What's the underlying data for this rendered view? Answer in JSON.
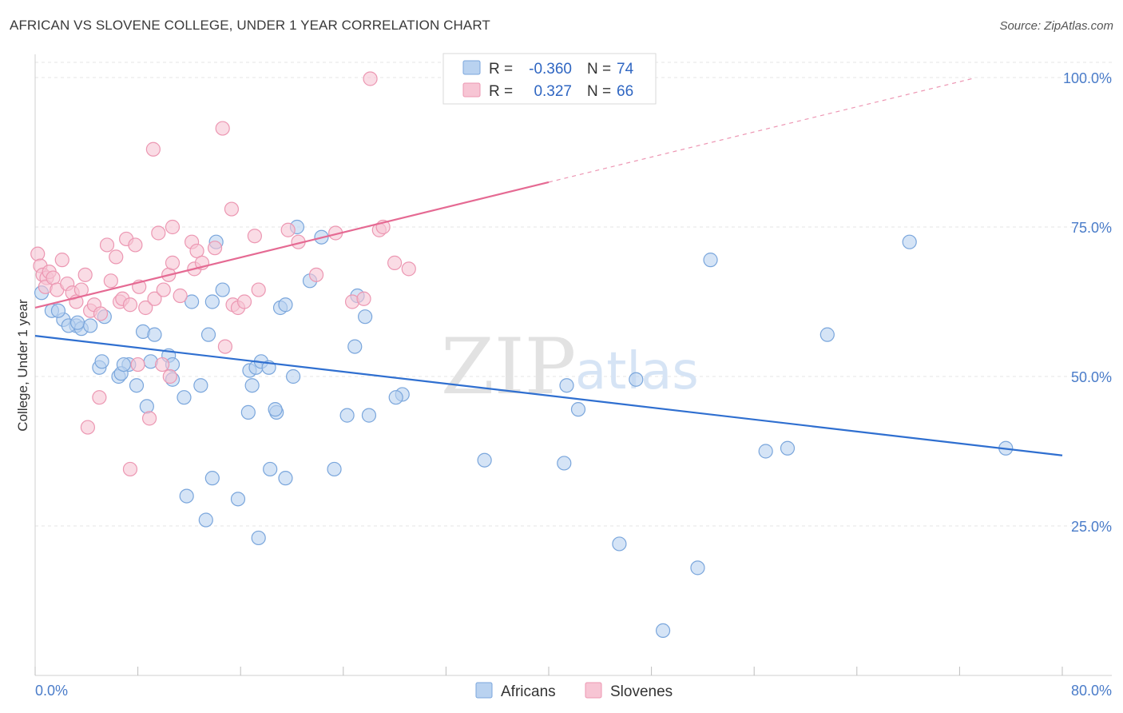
{
  "title": "AFRICAN VS SLOVENE COLLEGE, UNDER 1 YEAR CORRELATION CHART",
  "source": "Source: ZipAtlas.com",
  "watermark": {
    "zip": "ZIP",
    "atlas": "atlas"
  },
  "legend": {
    "r_label": "R =",
    "n_label": "N =",
    "rows": [
      {
        "r": "-0.360",
        "n": "74"
      },
      {
        "r": "0.327",
        "n": "66"
      }
    ]
  },
  "colors": {
    "africans_fill": "#b9d2f0",
    "africans_stroke": "#7aa6dc",
    "africans_line": "#2f6fd0",
    "slovenes_fill": "#f7c5d4",
    "slovenes_stroke": "#ec97b2",
    "slovenes_line": "#e56a93",
    "grid": "#e6e6e6",
    "tick_text": "#4a7cc9"
  },
  "chart_data": {
    "type": "scatter",
    "title": "AFRICAN VS SLOVENE COLLEGE, UNDER 1 YEAR CORRELATION CHART",
    "xlabel": "",
    "ylabel": "College, Under 1 year",
    "xlim": [
      0,
      80
    ],
    "ylim": [
      0,
      103
    ],
    "x_tick_labels": [
      "0.0%",
      "80.0%"
    ],
    "y_ticks": [
      25,
      50,
      75,
      100
    ],
    "y_tick_labels": [
      "25.0%",
      "50.0%",
      "75.0%",
      "100.0%"
    ],
    "grid": true,
    "legend_position": "top-center",
    "series": [
      {
        "name": "Africans",
        "points": [
          [
            0.5,
            64
          ],
          [
            1.3,
            61
          ],
          [
            2.2,
            59.5
          ],
          [
            1.8,
            61
          ],
          [
            3.2,
            58.5
          ],
          [
            2.6,
            58.5
          ],
          [
            3.6,
            58
          ],
          [
            5.4,
            60
          ],
          [
            5.0,
            51.5
          ],
          [
            6.5,
            50
          ],
          [
            7.3,
            52
          ],
          [
            8.4,
            57.5
          ],
          [
            9.0,
            52.5
          ],
          [
            9.3,
            57
          ],
          [
            10.4,
            53.5
          ],
          [
            10.7,
            52
          ],
          [
            12.2,
            62.5
          ],
          [
            11.6,
            46.5
          ],
          [
            13.5,
            57
          ],
          [
            13.8,
            62.5
          ],
          [
            14.6,
            64.5
          ],
          [
            16.6,
            44
          ],
          [
            16.9,
            48.5
          ],
          [
            16.7,
            51
          ],
          [
            17.2,
            51.5
          ],
          [
            17.6,
            52.5
          ],
          [
            18.2,
            51.5
          ],
          [
            19.1,
            61.5
          ],
          [
            19.5,
            62
          ],
          [
            20.1,
            50
          ],
          [
            21.4,
            66
          ],
          [
            22.3,
            73.3
          ],
          [
            18.8,
            44
          ],
          [
            14.1,
            72.5
          ],
          [
            24.9,
            55
          ],
          [
            24.3,
            43.5
          ],
          [
            26.0,
            43.5
          ],
          [
            28.6,
            47
          ],
          [
            28.1,
            46.5
          ],
          [
            35.0,
            36
          ],
          [
            41.2,
            35.5
          ],
          [
            41.4,
            48.5
          ],
          [
            42.3,
            44.5
          ],
          [
            46.8,
            49.5
          ],
          [
            52.6,
            69.5
          ],
          [
            58.6,
            38
          ],
          [
            68.1,
            72.5
          ],
          [
            75.6,
            38
          ],
          [
            20.4,
            75
          ],
          [
            25.1,
            63.5
          ],
          [
            25.7,
            60
          ],
          [
            23.3,
            34.5
          ],
          [
            19.5,
            33
          ],
          [
            18.3,
            34.5
          ],
          [
            15.8,
            29.5
          ],
          [
            13.3,
            26
          ],
          [
            13.8,
            33
          ],
          [
            11.8,
            30
          ],
          [
            6.7,
            50.5
          ],
          [
            6.9,
            52
          ],
          [
            3.3,
            59
          ],
          [
            4.3,
            58.5
          ],
          [
            5.2,
            52.5
          ],
          [
            7.9,
            48.5
          ],
          [
            8.7,
            45
          ],
          [
            10.7,
            49.5
          ],
          [
            12.9,
            48.5
          ],
          [
            18.7,
            44.5
          ],
          [
            45.5,
            22
          ],
          [
            48.9,
            7.5
          ],
          [
            51.6,
            18
          ],
          [
            61.7,
            57
          ],
          [
            56.9,
            37.5
          ],
          [
            17.4,
            23
          ]
        ]
      },
      {
        "name": "Slovenes",
        "points": [
          [
            0.2,
            70.5
          ],
          [
            0.4,
            68.5
          ],
          [
            0.6,
            67
          ],
          [
            0.9,
            66.5
          ],
          [
            0.8,
            65
          ],
          [
            1.1,
            67.5
          ],
          [
            1.4,
            66.5
          ],
          [
            1.7,
            64.5
          ],
          [
            2.1,
            69.5
          ],
          [
            2.5,
            65.5
          ],
          [
            2.9,
            64
          ],
          [
            3.2,
            62.5
          ],
          [
            3.6,
            64.5
          ],
          [
            3.9,
            67
          ],
          [
            4.3,
            61
          ],
          [
            4.6,
            62
          ],
          [
            5.1,
            60.5
          ],
          [
            5.6,
            72
          ],
          [
            5.9,
            66
          ],
          [
            6.3,
            70
          ],
          [
            6.6,
            62.5
          ],
          [
            6.8,
            63
          ],
          [
            7.1,
            73
          ],
          [
            7.4,
            62
          ],
          [
            7.8,
            72
          ],
          [
            8.1,
            65
          ],
          [
            8.6,
            61.5
          ],
          [
            9.3,
            63
          ],
          [
            9.6,
            74
          ],
          [
            10.0,
            64.5
          ],
          [
            10.4,
            67
          ],
          [
            10.7,
            69
          ],
          [
            11.3,
            63.5
          ],
          [
            12.2,
            72.5
          ],
          [
            12.4,
            68
          ],
          [
            12.6,
            71
          ],
          [
            13.0,
            69
          ],
          [
            14.0,
            71.5
          ],
          [
            15.4,
            62
          ],
          [
            14.8,
            55
          ],
          [
            15.8,
            61.5
          ],
          [
            16.3,
            62.5
          ],
          [
            17.1,
            73.5
          ],
          [
            17.4,
            64.5
          ],
          [
            19.7,
            74.5
          ],
          [
            20.5,
            72.5
          ],
          [
            21.9,
            67
          ],
          [
            23.4,
            74
          ],
          [
            24.7,
            62.5
          ],
          [
            25.6,
            63
          ],
          [
            26.8,
            74.5
          ],
          [
            27.1,
            75
          ],
          [
            28.0,
            69
          ],
          [
            29.1,
            68
          ],
          [
            26.1,
            99.8
          ],
          [
            14.6,
            91.5
          ],
          [
            9.2,
            88
          ],
          [
            15.3,
            78
          ],
          [
            10.7,
            75
          ],
          [
            8.0,
            52
          ],
          [
            9.9,
            52
          ],
          [
            10.5,
            50
          ],
          [
            8.9,
            43
          ],
          [
            4.1,
            41.5
          ],
          [
            5.0,
            46.5
          ],
          [
            7.4,
            34.5
          ]
        ]
      }
    ],
    "trendlines": [
      {
        "series": "Africans",
        "x": [
          0,
          80
        ],
        "y": [
          56.8,
          36.8
        ]
      },
      {
        "series": "Slovenes",
        "x": [
          0,
          40
        ],
        "y": [
          61.5,
          82.5
        ],
        "dashed_extension_to_x": 73
      }
    ]
  },
  "bottom_legend": {
    "items": [
      "Africans",
      "Slovenes"
    ]
  }
}
